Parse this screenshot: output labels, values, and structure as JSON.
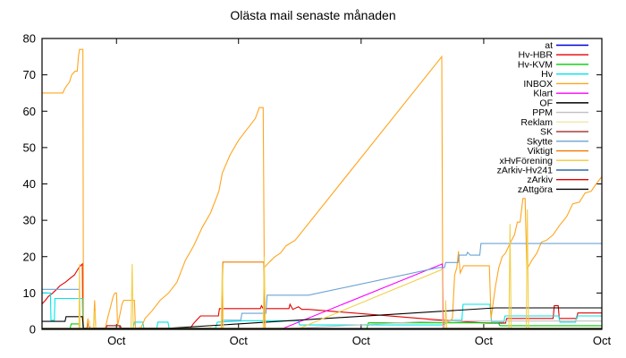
{
  "chart_data": {
    "type": "line",
    "title": "Olästa mail senaste månaden",
    "xlabel": "",
    "ylabel": "",
    "x_unit": "percent of x-axis span (date axis, last month, all ticks labeled Oct)",
    "y_unit": "unread mail count",
    "grid": false,
    "legend_position": "top-right-inside",
    "x_axis": {
      "tick_label": "Oct",
      "tick_positions_percent": [
        13.3,
        35.1,
        57.0,
        78.9,
        100
      ],
      "labels": [
        "Oct",
        "Oct",
        "Oct",
        "Oct",
        "Oct"
      ]
    },
    "y_axis": {
      "min": 0,
      "max": 80,
      "ticks": [
        0,
        10,
        20,
        30,
        40,
        50,
        60,
        70,
        80
      ]
    },
    "series": [
      {
        "name": "at",
        "color": "#0000dd",
        "points": [
          [
            0,
            0.1
          ],
          [
            100,
            0.1
          ]
        ]
      },
      {
        "name": "Hv-HBR",
        "color": "#e60000",
        "points": [
          [
            0,
            7
          ],
          [
            0.6,
            8
          ],
          [
            1.1,
            9
          ],
          [
            1.9,
            10
          ],
          [
            2.6,
            11
          ],
          [
            3.2,
            12
          ],
          [
            4.2,
            13
          ],
          [
            5.0,
            14
          ],
          [
            5.8,
            15
          ],
          [
            6.2,
            16
          ],
          [
            6.6,
            17
          ],
          [
            7.2,
            18
          ],
          [
            7.3,
            0.3
          ],
          [
            8.1,
            0.3
          ],
          [
            8.2,
            1.5
          ],
          [
            8.6,
            0.3
          ],
          [
            11.4,
            0.3
          ],
          [
            11.6,
            1
          ],
          [
            13.8,
            1
          ],
          [
            14.0,
            0.3
          ],
          [
            26.5,
            0.3
          ],
          [
            27.0,
            1.5
          ],
          [
            27.6,
            2.5
          ],
          [
            28.3,
            3.7
          ],
          [
            31.5,
            3.7
          ],
          [
            31.7,
            5.7
          ],
          [
            39.0,
            5.7
          ],
          [
            39.2,
            6.5
          ],
          [
            39.5,
            5.7
          ],
          [
            44.1,
            5.7
          ],
          [
            44.3,
            6.9
          ],
          [
            44.8,
            5.5
          ],
          [
            45.8,
            6.2
          ],
          [
            46.4,
            5.5
          ],
          [
            47.6,
            5.5
          ],
          [
            70.8,
            2.6
          ],
          [
            74.0,
            2.3
          ],
          [
            79.5,
            1.7
          ],
          [
            82.8,
            1.7
          ],
          [
            83.0,
            3
          ],
          [
            91.3,
            3
          ],
          [
            91.5,
            6.5
          ],
          [
            92.2,
            6.5
          ],
          [
            92.4,
            3
          ],
          [
            95.5,
            3
          ],
          [
            95.7,
            4.5
          ],
          [
            100,
            4.5
          ]
        ]
      },
      {
        "name": "Hv-KVM",
        "color": "#00cc00",
        "points": [
          [
            0,
            0.2
          ],
          [
            5.0,
            0.2
          ],
          [
            5.2,
            1.5
          ],
          [
            6.6,
            1.5
          ],
          [
            6.7,
            0.2
          ],
          [
            58.0,
            0.2
          ],
          [
            58.3,
            1.8
          ],
          [
            81.5,
            1.8
          ],
          [
            81.8,
            1
          ],
          [
            100,
            1
          ]
        ]
      },
      {
        "name": "Hv",
        "color": "#00e5e5",
        "points": [
          [
            0,
            10
          ],
          [
            1.5,
            10
          ],
          [
            1.6,
            2.5
          ],
          [
            2.2,
            2.5
          ],
          [
            2.3,
            8.5
          ],
          [
            7.2,
            8.5
          ],
          [
            7.3,
            0.3
          ],
          [
            16.3,
            0.3
          ],
          [
            16.5,
            2
          ],
          [
            18.0,
            2
          ],
          [
            18.2,
            0.3
          ],
          [
            20.5,
            0.3
          ],
          [
            20.7,
            2
          ],
          [
            22.5,
            2
          ],
          [
            22.7,
            0.3
          ],
          [
            31.0,
            0.3
          ],
          [
            31.3,
            2
          ],
          [
            36.4,
            2.4
          ],
          [
            45.8,
            2.4
          ],
          [
            46.0,
            1.2
          ],
          [
            71.6,
            1.2
          ],
          [
            73.2,
            2.5
          ],
          [
            75.0,
            2.5
          ],
          [
            75.2,
            6.9
          ],
          [
            80.0,
            6.9
          ],
          [
            80.3,
            2
          ],
          [
            82.5,
            2
          ],
          [
            82.7,
            3.7
          ],
          [
            92.3,
            3.7
          ],
          [
            92.5,
            2
          ],
          [
            95.3,
            2
          ],
          [
            95.5,
            3.7
          ],
          [
            100,
            3.7
          ]
        ]
      },
      {
        "name": "INBOX",
        "color": "#ffa51e",
        "points": [
          [
            0,
            65
          ],
          [
            3.7,
            65
          ],
          [
            4.0,
            66
          ],
          [
            4.4,
            67
          ],
          [
            4.9,
            68
          ],
          [
            5.3,
            70
          ],
          [
            5.9,
            71
          ],
          [
            6.3,
            71
          ],
          [
            6.5,
            75
          ],
          [
            6.7,
            77
          ],
          [
            7.3,
            77
          ],
          [
            7.4,
            0.3
          ],
          [
            8.0,
            0.3
          ],
          [
            8.2,
            3
          ],
          [
            8.4,
            0.3
          ],
          [
            9.2,
            0.3
          ],
          [
            9.4,
            8
          ],
          [
            9.6,
            0.3
          ],
          [
            11.3,
            0.3
          ],
          [
            11.7,
            3
          ],
          [
            12.2,
            6
          ],
          [
            12.7,
            9
          ],
          [
            13.0,
            10
          ],
          [
            13.3,
            10
          ],
          [
            13.5,
            1
          ],
          [
            13.9,
            4
          ],
          [
            14.3,
            7
          ],
          [
            14.6,
            8
          ],
          [
            16.5,
            8
          ],
          [
            16.7,
            0.3
          ],
          [
            17.7,
            0.5
          ],
          [
            18.4,
            3
          ],
          [
            19.6,
            5
          ],
          [
            21.1,
            8
          ],
          [
            22.6,
            10
          ],
          [
            24.1,
            13
          ],
          [
            25.6,
            19
          ],
          [
            27.1,
            23
          ],
          [
            28.6,
            28
          ],
          [
            30.1,
            32
          ],
          [
            31.6,
            38
          ],
          [
            32.2,
            43
          ],
          [
            33.6,
            48
          ],
          [
            35.1,
            52
          ],
          [
            36.6,
            55
          ],
          [
            38.1,
            58
          ],
          [
            38.8,
            61
          ],
          [
            39.5,
            61
          ],
          [
            39.7,
            17
          ],
          [
            40.6,
            18.5
          ],
          [
            41.6,
            20
          ],
          [
            42.6,
            21
          ],
          [
            43.6,
            23
          ],
          [
            45.2,
            24.5
          ],
          [
            71.4,
            75
          ],
          [
            71.6,
            2
          ],
          [
            72.6,
            2
          ],
          [
            73.3,
            3
          ],
          [
            73.7,
            15
          ],
          [
            74.1,
            17
          ],
          [
            74.4,
            21.5
          ],
          [
            74.7,
            15.5
          ],
          [
            75.3,
            17.5
          ],
          [
            79.9,
            17.5
          ],
          [
            80.2,
            3
          ],
          [
            81.0,
            12
          ],
          [
            81.6,
            17
          ],
          [
            82.2,
            20
          ],
          [
            82.8,
            21
          ],
          [
            83.7,
            24
          ],
          [
            84.4,
            26
          ],
          [
            84.9,
            29.5
          ],
          [
            85.4,
            29.5
          ],
          [
            85.9,
            36
          ],
          [
            86.3,
            36
          ],
          [
            86.6,
            16.5
          ],
          [
            87.5,
            19
          ],
          [
            88.4,
            21
          ],
          [
            89.2,
            24
          ],
          [
            90.1,
            24.5
          ],
          [
            91.3,
            26
          ],
          [
            92.4,
            28.5
          ],
          [
            93.7,
            31
          ],
          [
            94.8,
            34.5
          ],
          [
            96.0,
            35
          ],
          [
            97.0,
            37.5
          ],
          [
            98.1,
            38
          ],
          [
            99.0,
            40
          ],
          [
            100,
            42
          ]
        ]
      },
      {
        "name": "Klart",
        "color": "#ff00ff",
        "points": [
          [
            0,
            0.1
          ],
          [
            42.8,
            0.1
          ],
          [
            71.5,
            18
          ],
          [
            71.7,
            0.1
          ],
          [
            100,
            0.1
          ]
        ]
      },
      {
        "name": "OF",
        "color": "#000000",
        "points": [
          [
            0,
            2.2
          ],
          [
            4.1,
            2.2
          ],
          [
            4.3,
            3.5
          ],
          [
            7.2,
            3.5
          ],
          [
            7.4,
            0.3
          ],
          [
            22.5,
            0.3
          ],
          [
            81.0,
            5.9
          ],
          [
            100,
            5.9
          ]
        ]
      },
      {
        "name": "PPM",
        "color": "#c0c0c0",
        "points": [
          [
            0,
            0.15
          ],
          [
            45.0,
            0.3
          ],
          [
            70.0,
            2.3
          ],
          [
            100,
            2.3
          ]
        ]
      },
      {
        "name": "Reklam",
        "color": "#eee8aa",
        "points": [
          [
            0,
            0.2
          ],
          [
            8.3,
            0.2
          ],
          [
            8.5,
            2.5
          ],
          [
            8.7,
            0.2
          ],
          [
            29.8,
            0.2
          ],
          [
            30.0,
            0.8
          ],
          [
            30.4,
            0.2
          ],
          [
            100,
            0.2
          ]
        ]
      },
      {
        "name": "SK",
        "color": "#a52a2a",
        "points": [
          [
            0,
            0.15
          ],
          [
            11.4,
            0.15
          ],
          [
            11.6,
            1
          ],
          [
            14.0,
            1
          ],
          [
            14.2,
            0.15
          ],
          [
            100,
            0.15
          ]
        ]
      },
      {
        "name": "Skytte",
        "color": "#6ba3d6",
        "points": [
          [
            0,
            11
          ],
          [
            6.65,
            11
          ],
          [
            6.7,
            0.2
          ],
          [
            32.0,
            0.2
          ],
          [
            32.2,
            2.5
          ],
          [
            35.5,
            2.5
          ],
          [
            35.7,
            4.4
          ],
          [
            40.0,
            4.4
          ],
          [
            40.2,
            9.4
          ],
          [
            47.6,
            9.4
          ],
          [
            70.8,
            17
          ],
          [
            71.9,
            17
          ],
          [
            72.1,
            18.4
          ],
          [
            74.3,
            18.4
          ],
          [
            74.5,
            20.4
          ],
          [
            75.8,
            20.4
          ],
          [
            76.0,
            21.2
          ],
          [
            76.5,
            20.4
          ],
          [
            78.2,
            20.4
          ],
          [
            78.4,
            23.6
          ],
          [
            100,
            23.6
          ]
        ]
      },
      {
        "name": "Viktigt",
        "color": "#f07800",
        "points": [
          [
            0,
            0.2
          ],
          [
            32.1,
            0.2
          ],
          [
            32.3,
            18.5
          ],
          [
            39.6,
            18.5
          ],
          [
            39.8,
            0.2
          ],
          [
            100,
            0.2
          ]
        ]
      },
      {
        "name": "xHvFörening",
        "color": "#f2cf4a",
        "points": [
          [
            0,
            0.3
          ],
          [
            6.6,
            0.3
          ],
          [
            6.7,
            18
          ],
          [
            6.8,
            0.3
          ],
          [
            9.2,
            0.3
          ],
          [
            9.4,
            5
          ],
          [
            9.6,
            0.3
          ],
          [
            15.9,
            0.3
          ],
          [
            16.1,
            18
          ],
          [
            16.3,
            0.3
          ],
          [
            32.0,
            0.3
          ],
          [
            32.2,
            18
          ],
          [
            32.4,
            0.3
          ],
          [
            39.5,
            0.3
          ],
          [
            39.7,
            20
          ],
          [
            39.9,
            0.3
          ],
          [
            46.0,
            0.3
          ],
          [
            71.5,
            16.5
          ],
          [
            71.6,
            0.3
          ],
          [
            72.0,
            0.3
          ],
          [
            72.1,
            8
          ],
          [
            72.3,
            0.3
          ],
          [
            83.4,
            0.3
          ],
          [
            83.6,
            29
          ],
          [
            83.8,
            0.3
          ],
          [
            86.5,
            0.3
          ],
          [
            86.7,
            33
          ],
          [
            86.9,
            0.3
          ],
          [
            100,
            0.3
          ]
        ]
      },
      {
        "name": "zArkiv-Hv241",
        "color": "#2d6ca2",
        "points": [
          [
            0,
            0.1
          ],
          [
            100,
            0.1
          ]
        ]
      },
      {
        "name": "zArkiv",
        "color": "#dd0000",
        "points": [
          [
            0,
            0.1
          ],
          [
            100,
            0.1
          ]
        ]
      },
      {
        "name": "zAttgöra",
        "color": "#000000",
        "points": [
          [
            0,
            0.25
          ],
          [
            100,
            0.25
          ]
        ]
      }
    ]
  }
}
